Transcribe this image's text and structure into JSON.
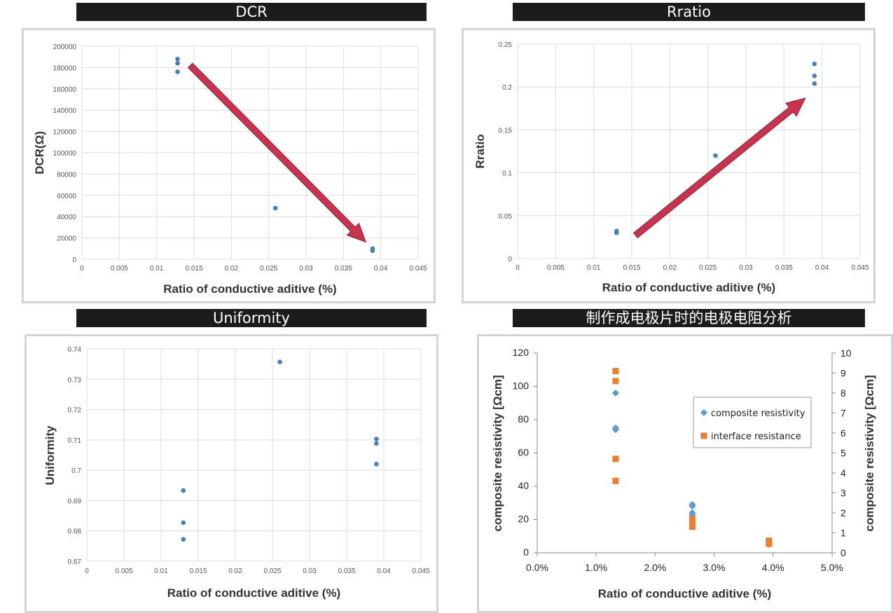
{
  "banners": {
    "dcr": "DCR",
    "rratio": "Rratio",
    "uniformity": "Uniformity",
    "resist": "制作成电极片时的电极电阻分析"
  },
  "colors": {
    "marker": "#4a7ebb",
    "arrow": "#c8334f",
    "diamond": "#5b9bd5",
    "square": "#ed7d31",
    "banner_bg": "#1c1c1c"
  },
  "chart_data": [
    {
      "id": "dcr",
      "type": "scatter",
      "title": "DCR",
      "xlabel": "Ratio of conductive aditive (%)",
      "ylabel": "DCR(Ω)",
      "xlim": [
        0,
        0.045
      ],
      "ylim": [
        0,
        200000
      ],
      "x_ticks": [
        "0",
        "0.005",
        "0.01",
        "0.015",
        "0.02",
        "0.025",
        "0.03",
        "0.035",
        "0.04",
        "0.045"
      ],
      "y_ticks": [
        "0",
        "20000",
        "40000",
        "60000",
        "80000",
        "100000",
        "120000",
        "140000",
        "160000",
        "180000",
        "200000"
      ],
      "points": [
        {
          "x": 0.0128,
          "y": 188000
        },
        {
          "x": 0.0128,
          "y": 184000
        },
        {
          "x": 0.0128,
          "y": 176000
        },
        {
          "x": 0.0259,
          "y": 48000
        },
        {
          "x": 0.0389,
          "y": 10000
        },
        {
          "x": 0.0389,
          "y": 8000
        }
      ],
      "arrow": {
        "from": [
          0.0145,
          182000
        ],
        "to": [
          0.038,
          16000
        ]
      },
      "grid": true
    },
    {
      "id": "rratio",
      "type": "scatter",
      "title": "Rratio",
      "xlabel": "Ratio of conductive aditive (%)",
      "ylabel": "Rratio",
      "xlim": [
        0,
        0.045
      ],
      "ylim": [
        0,
        0.25
      ],
      "x_ticks": [
        "0",
        "0.005",
        "0.01",
        "0.015",
        "0.02",
        "0.025",
        "0.03",
        "0.035",
        "0.04",
        "0.045"
      ],
      "y_ticks": [
        "0",
        "0.05",
        "0.1",
        "0.15",
        "0.2",
        "0.25"
      ],
      "points": [
        {
          "x": 0.013,
          "y": 0.032
        },
        {
          "x": 0.013,
          "y": 0.03
        },
        {
          "x": 0.026,
          "y": 0.12
        },
        {
          "x": 0.039,
          "y": 0.227
        },
        {
          "x": 0.039,
          "y": 0.213
        },
        {
          "x": 0.039,
          "y": 0.204
        }
      ],
      "arrow": {
        "from": [
          0.0155,
          0.027
        ],
        "to": [
          0.0378,
          0.187
        ]
      },
      "grid": true
    },
    {
      "id": "uniformity",
      "type": "scatter",
      "title": "Uniformity",
      "xlabel": "Ratio of conductive aditive (%)",
      "ylabel": "Uniformity",
      "xlim": [
        0,
        0.045
      ],
      "ylim": [
        0.67,
        0.74
      ],
      "x_ticks": [
        "0",
        "0.005",
        "0.01",
        "0.015",
        "0.02",
        "0.025",
        "0.03",
        "0.035",
        "0.04",
        "0.045"
      ],
      "y_ticks": [
        "0.67",
        "0.68",
        "0.69",
        "0.7",
        "0.71",
        "0.72",
        "0.73",
        "0.74"
      ],
      "points": [
        {
          "x": 0.013,
          "y": 0.6933
        },
        {
          "x": 0.013,
          "y": 0.6827
        },
        {
          "x": 0.013,
          "y": 0.6772
        },
        {
          "x": 0.026,
          "y": 0.7357
        },
        {
          "x": 0.039,
          "y": 0.7103
        },
        {
          "x": 0.039,
          "y": 0.7088
        },
        {
          "x": 0.039,
          "y": 0.702
        }
      ],
      "grid": true
    },
    {
      "id": "resist",
      "type": "scatter",
      "title": "制作成电极片时的电极电阻分析",
      "xlabel": "Ratio of conductive aditive (%)",
      "ylabel": "composite resistivity [Ωcm]",
      "y2label": "composite resistivity [Ωcm]",
      "xlim": [
        0,
        0.05
      ],
      "ylim": [
        0,
        120
      ],
      "y2lim": [
        0,
        10
      ],
      "x_ticks": [
        "0.0%",
        "1.0%",
        "2.0%",
        "3.0%",
        "4.0%",
        "5.0%"
      ],
      "y_ticks": [
        "0",
        "20",
        "40",
        "60",
        "80",
        "100",
        "120"
      ],
      "y2_ticks": [
        "0",
        "1",
        "2",
        "3",
        "4",
        "5",
        "6",
        "7",
        "8",
        "9",
        "10"
      ],
      "series": [
        {
          "name": "composite resistivity",
          "marker": "diamond",
          "axis": "left",
          "points": [
            {
              "x": 0.0133,
              "y": 96
            },
            {
              "x": 0.0133,
              "y": 75
            },
            {
              "x": 0.0133,
              "y": 74
            },
            {
              "x": 0.0263,
              "y": 29
            },
            {
              "x": 0.0263,
              "y": 28
            },
            {
              "x": 0.0263,
              "y": 24
            },
            {
              "x": 0.0263,
              "y": 23
            },
            {
              "x": 0.0393,
              "y": 6
            },
            {
              "x": 0.0393,
              "y": 5
            }
          ]
        },
        {
          "name": "interface resistance",
          "marker": "square",
          "axis": "right",
          "points": [
            {
              "x": 0.0133,
              "y": 9.1
            },
            {
              "x": 0.0133,
              "y": 8.6
            },
            {
              "x": 0.0133,
              "y": 4.7
            },
            {
              "x": 0.0133,
              "y": 3.6
            },
            {
              "x": 0.0263,
              "y": 1.7
            },
            {
              "x": 0.0263,
              "y": 1.5
            },
            {
              "x": 0.0263,
              "y": 1.3
            },
            {
              "x": 0.0393,
              "y": 0.6
            },
            {
              "x": 0.0393,
              "y": 0.45
            }
          ]
        }
      ],
      "legend_position": "right-middle",
      "grid": false
    }
  ]
}
